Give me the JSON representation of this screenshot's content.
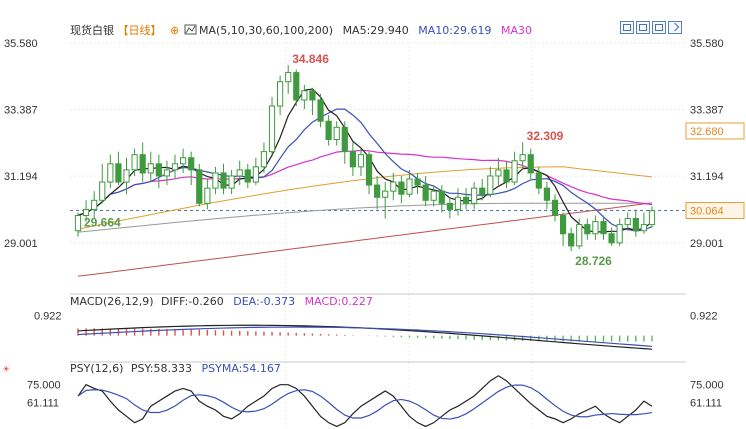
{
  "header": {
    "symbol": "现货白银",
    "period": "【日线】",
    "ma_label": "MA(5,10,30,60,100,200)",
    "ma5": "MA5:29.940",
    "ma10": "MA10:29.619",
    "ma30": "MA30"
  },
  "macd_header": {
    "name": "MACD(26,12,9)",
    "diff": "DIFF:-0.260",
    "dea": "DEA:-0.373",
    "macd": "MACD:0.227"
  },
  "psy_header": {
    "name": "PSY(12,6)",
    "psy": "PSY:58.333",
    "psyma": "PSYMA:54.167"
  },
  "colors": {
    "up": "#3f9a3f",
    "down": "#3f9a3f",
    "ma5": "#222222",
    "ma10": "#3c4fb8",
    "ma30": "#d633c8",
    "ma60": "#e0a030",
    "ma100": "#999999",
    "ma200": "#c0504d",
    "high_label": "#d9534f",
    "low_label": "#5a9a4a",
    "last_price_box": "#e8a030"
  },
  "toolbar": [
    "grid-icon",
    "bar-layout-icon",
    "split-layout-icon",
    "arrow-icon"
  ],
  "chart_data": {
    "type": "candlestick",
    "main_axis": {
      "ticks": [
        "35.580",
        "33.387",
        "31.194",
        "29.001"
      ],
      "ylim": [
        27.45,
        36.0
      ]
    },
    "candles": [
      [
        29.4,
        29.9,
        29.2,
        30.0
      ],
      [
        29.9,
        30.1,
        29.7,
        30.4
      ],
      [
        30.1,
        30.4,
        29.8,
        30.7
      ],
      [
        30.4,
        31.0,
        30.3,
        31.6
      ],
      [
        31.0,
        31.6,
        30.8,
        31.9
      ],
      [
        31.6,
        31.0,
        30.9,
        32.0
      ],
      [
        31.0,
        31.4,
        30.6,
        31.8
      ],
      [
        31.4,
        31.9,
        31.2,
        32.1
      ],
      [
        31.9,
        31.3,
        31.0,
        32.3
      ],
      [
        31.3,
        31.6,
        31.0,
        32.0
      ],
      [
        31.6,
        31.2,
        30.8,
        31.9
      ],
      [
        31.2,
        31.4,
        30.9,
        31.7
      ],
      [
        31.4,
        31.6,
        31.1,
        31.9
      ],
      [
        31.6,
        31.8,
        31.3,
        32.1
      ],
      [
        31.8,
        31.4,
        30.9,
        32.0
      ],
      [
        31.4,
        30.3,
        30.2,
        31.6
      ],
      [
        30.3,
        30.8,
        30.1,
        31.1
      ],
      [
        30.8,
        31.3,
        30.6,
        31.5
      ],
      [
        31.3,
        30.8,
        30.6,
        31.6
      ],
      [
        30.8,
        31.2,
        30.6,
        31.4
      ],
      [
        31.2,
        31.4,
        30.9,
        31.7
      ],
      [
        31.4,
        31.0,
        30.8,
        31.6
      ],
      [
        31.0,
        31.5,
        30.9,
        31.8
      ],
      [
        31.5,
        32.0,
        31.3,
        32.3
      ],
      [
        32.0,
        33.5,
        31.9,
        33.8
      ],
      [
        33.5,
        34.3,
        33.2,
        34.5
      ],
      [
        34.3,
        34.6,
        33.9,
        34.846
      ],
      [
        34.6,
        33.7,
        33.5,
        34.7
      ],
      [
        33.7,
        34.0,
        33.4,
        34.2
      ],
      [
        34.0,
        33.7,
        33.2,
        34.1
      ],
      [
        33.7,
        33.0,
        32.8,
        33.9
      ],
      [
        33.0,
        32.4,
        32.2,
        33.2
      ],
      [
        32.4,
        32.8,
        32.2,
        33.0
      ],
      [
        32.8,
        32.0,
        31.6,
        33.0
      ],
      [
        32.0,
        31.5,
        31.2,
        32.3
      ],
      [
        31.5,
        31.9,
        31.2,
        32.1
      ],
      [
        31.9,
        30.9,
        30.6,
        32.0
      ],
      [
        30.9,
        30.5,
        30.1,
        31.2
      ],
      [
        30.5,
        30.7,
        29.8,
        31.0
      ],
      [
        30.7,
        31.0,
        30.4,
        31.3
      ],
      [
        31.0,
        30.6,
        30.3,
        31.2
      ],
      [
        30.6,
        31.1,
        30.5,
        31.4
      ],
      [
        31.1,
        30.9,
        30.6,
        31.3
      ],
      [
        30.9,
        30.4,
        30.2,
        31.2
      ],
      [
        30.4,
        30.7,
        30.2,
        30.9
      ],
      [
        30.7,
        30.3,
        30.0,
        30.9
      ],
      [
        30.3,
        30.1,
        29.8,
        30.5
      ],
      [
        30.1,
        30.5,
        29.9,
        30.8
      ],
      [
        30.5,
        30.3,
        30.1,
        30.8
      ],
      [
        30.3,
        30.8,
        30.1,
        31.0
      ],
      [
        30.8,
        30.6,
        30.4,
        31.1
      ],
      [
        30.6,
        31.2,
        30.5,
        31.5
      ],
      [
        31.2,
        31.4,
        30.9,
        31.8
      ],
      [
        31.4,
        31.0,
        30.8,
        31.7
      ],
      [
        31.0,
        31.7,
        30.9,
        32.0
      ],
      [
        31.7,
        31.9,
        31.4,
        32.309
      ],
      [
        31.9,
        31.3,
        31.1,
        32.1
      ],
      [
        31.3,
        30.8,
        30.6,
        31.5
      ],
      [
        30.8,
        30.4,
        30.1,
        31.0
      ],
      [
        30.4,
        29.9,
        29.7,
        30.6
      ],
      [
        29.9,
        29.3,
        28.9,
        30.0
      ],
      [
        29.3,
        28.9,
        28.726,
        29.5
      ],
      [
        28.9,
        29.6,
        28.8,
        29.8
      ],
      [
        29.6,
        29.3,
        29.1,
        29.8
      ],
      [
        29.3,
        29.7,
        29.1,
        29.9
      ],
      [
        29.7,
        29.3,
        29.1,
        29.9
      ],
      [
        29.3,
        29.0,
        28.9,
        29.5
      ],
      [
        29.0,
        29.6,
        28.9,
        29.8
      ],
      [
        29.6,
        29.8,
        29.4,
        30.0
      ],
      [
        29.8,
        29.4,
        29.2,
        30.1
      ],
      [
        29.4,
        29.6,
        29.3,
        30.0
      ],
      [
        29.6,
        30.06,
        29.5,
        30.2
      ]
    ],
    "high_label": "34.846",
    "low_label_1": "29.664",
    "high_label_2": "32.309",
    "low_label_2": "28.726",
    "right_tag_ma60": "32.680",
    "right_tag_last": "30.064",
    "macd": {
      "ticks": [
        "0.922"
      ],
      "ylim": [
        -1.1,
        1.25
      ]
    },
    "psy": {
      "ticks": [
        "75.000",
        "61.111"
      ],
      "ylim": [
        40,
        85
      ]
    }
  }
}
